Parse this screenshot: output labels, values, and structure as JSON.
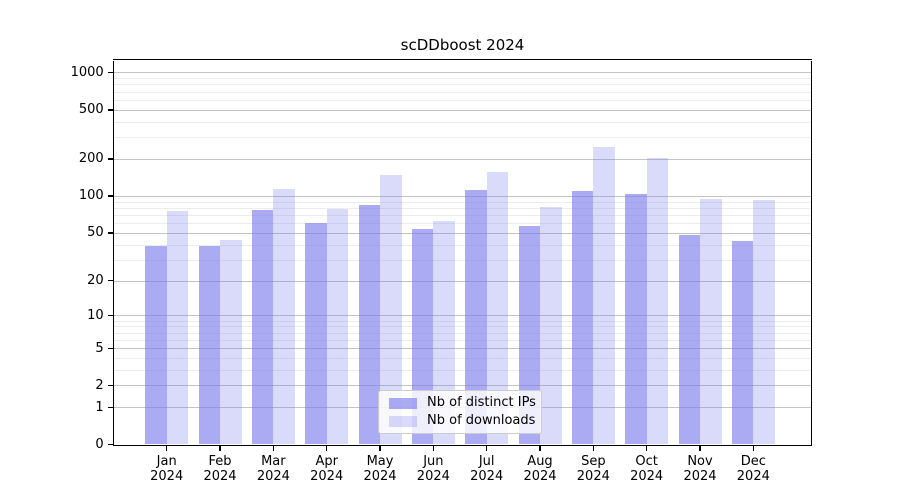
{
  "title": "scDDboost 2024",
  "legend": {
    "items": [
      {
        "label": "Nb of distinct IPs",
        "swatch": "dark"
      },
      {
        "label": "Nb of downloads",
        "swatch": "light"
      }
    ]
  },
  "colors": {
    "bar_base": "#7777ee",
    "bar_dark_alpha": 0.62,
    "bar_light_alpha": 0.27,
    "grid_major": "#c4c4c4",
    "grid_minor": "#ececec",
    "axis": "#000000",
    "legend_border": "#cccccc",
    "text": "#000000"
  },
  "chart_data": {
    "type": "bar",
    "title": "scDDboost 2024",
    "categories": [
      "Jan 2024",
      "Feb 2024",
      "Mar 2024",
      "Apr 2024",
      "May 2024",
      "Jun 2024",
      "Jul 2024",
      "Aug 2024",
      "Sep 2024",
      "Oct 2024",
      "Nov 2024",
      "Dec 2024"
    ],
    "series": [
      {
        "name": "Nb of distinct IPs",
        "values": [
          39,
          39,
          77,
          60,
          84,
          54,
          112,
          57,
          110,
          103,
          48,
          43
        ]
      },
      {
        "name": "Nb of downloads",
        "values": [
          76,
          44,
          114,
          79,
          148,
          63,
          158,
          82,
          250,
          202,
          94,
          92
        ]
      }
    ],
    "yscale": "log1p",
    "ylim": [
      0,
      1260
    ],
    "yticks": [
      0,
      1,
      2,
      5,
      10,
      20,
      50,
      100,
      200,
      500,
      1000
    ],
    "yminor": [
      3,
      4,
      6,
      7,
      8,
      9,
      30,
      40,
      60,
      70,
      80,
      90,
      300,
      400,
      600,
      700,
      800,
      900
    ],
    "xlabel": "",
    "ylabel": "",
    "grid": true,
    "legend_position": "lower center"
  }
}
